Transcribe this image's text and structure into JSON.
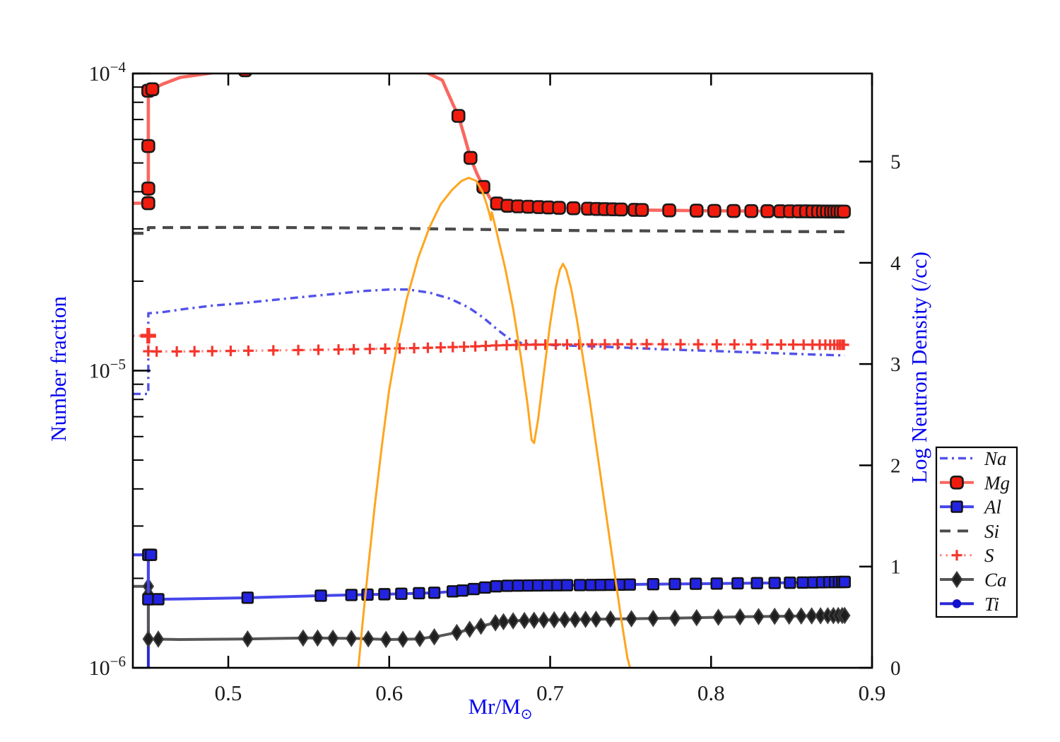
{
  "figure": {
    "background": "#ffffff",
    "frame_color": "#000000",
    "tick_label_color": "#1a1a1a",
    "axis_label_color": "#0505ee"
  },
  "chart_data": {
    "type": "line",
    "title": "",
    "xlabel_main": "Mr/M",
    "xlabel_sub": "⊙",
    "ylabel_left": "Number fraction",
    "ylabel_right": "Log Neutron Density (/cc)",
    "x_range": [
      0.4407,
      0.9
    ],
    "x_ticks": [
      0.5,
      0.6,
      0.7,
      0.8,
      0.9
    ],
    "x_tick_labels": [
      "0.5",
      "0.6",
      "0.7",
      "0.8",
      "0.9"
    ],
    "y_left": {
      "scale": "log",
      "min": 1e-06,
      "max": 0.0001,
      "major_ticks": [
        0.0001,
        1e-05,
        1e-06
      ],
      "tick_labels": [
        {
          "base": "10",
          "exp": "−4"
        },
        {
          "base": "10",
          "exp": "−5"
        },
        {
          "base": "10",
          "exp": "−6"
        }
      ]
    },
    "y_right": {
      "min": 0,
      "max": 5.87,
      "ticks": [
        0,
        1,
        2,
        3,
        4,
        5
      ],
      "tick_labels": [
        "0",
        "1",
        "2",
        "3",
        "4",
        "5"
      ]
    },
    "legend_position": "right-middle",
    "grid": false,
    "series": [
      {
        "name": "Na",
        "color": "#5252ea",
        "dash": "dashdot",
        "marker": "none",
        "width": 3.4,
        "points": [
          [
            0.4407,
            8.35e-06
          ],
          [
            0.4503,
            8.35e-06
          ],
          [
            0.4503,
            1.56e-05
          ],
          [
            0.458,
            1.57e-05
          ],
          [
            0.472,
            1.61e-05
          ],
          [
            0.49,
            1.655e-05
          ],
          [
            0.51,
            1.69e-05
          ],
          [
            0.535,
            1.745e-05
          ],
          [
            0.56,
            1.8e-05
          ],
          [
            0.585,
            1.855e-05
          ],
          [
            0.6,
            1.875e-05
          ],
          [
            0.612,
            1.875e-05
          ],
          [
            0.625,
            1.83e-05
          ],
          [
            0.638,
            1.745e-05
          ],
          [
            0.6495,
            1.63e-05
          ],
          [
            0.659,
            1.5e-05
          ],
          [
            0.6675,
            1.37e-05
          ],
          [
            0.6755,
            1.27e-05
          ],
          [
            0.683,
            1.235e-05
          ],
          [
            0.69,
            1.225e-05
          ],
          [
            0.71,
            1.215e-05
          ],
          [
            0.74,
            1.2e-05
          ],
          [
            0.77,
            1.18e-05
          ],
          [
            0.8,
            1.165e-05
          ],
          [
            0.83,
            1.15e-05
          ],
          [
            0.86,
            1.135e-05
          ],
          [
            0.883,
            1.125e-05
          ]
        ],
        "markers_x": [],
        "extra_markers": []
      },
      {
        "name": "Mg",
        "color": "#f9675f",
        "marker_color": "#f11b0d",
        "edge": "#1a1a1a",
        "dash": "solid",
        "marker": "roundsquare",
        "width": 4.6,
        "points": [
          [
            0.4407,
            3.66e-05
          ],
          [
            0.4503,
            3.66e-05
          ],
          [
            0.4503,
            8.75e-05
          ],
          [
            0.4528,
            8.85e-05
          ],
          [
            0.459,
            9.2e-05
          ],
          [
            0.47,
            9.7e-05
          ],
          [
            0.49,
            0.0001005
          ],
          [
            0.515,
            0.000103
          ],
          [
            0.56,
            0.0001055
          ],
          [
            0.6,
            0.0001045
          ],
          [
            0.622,
            0.0001015
          ],
          [
            0.633,
            9.5e-05
          ],
          [
            0.6395,
            7.9e-05
          ],
          [
            0.643,
            7.2e-05
          ],
          [
            0.6465,
            6.2e-05
          ],
          [
            0.6505,
            5.2e-05
          ],
          [
            0.6545,
            4.6e-05
          ],
          [
            0.6585,
            4.15e-05
          ],
          [
            0.663,
            3.78e-05
          ],
          [
            0.668,
            3.62e-05
          ],
          [
            0.675,
            3.58e-05
          ],
          [
            0.7,
            3.54e-05
          ],
          [
            0.73,
            3.5e-05
          ],
          [
            0.76,
            3.47e-05
          ],
          [
            0.8,
            3.45e-05
          ],
          [
            0.84,
            3.44e-05
          ],
          [
            0.883,
            3.43e-05
          ]
        ],
        "markers_x": [
          0.4528,
          0.5105,
          0.643,
          0.6505,
          0.6585,
          0.667,
          0.6735,
          0.68,
          0.6865,
          0.693,
          0.699,
          0.7055,
          0.7145,
          0.7235,
          0.729,
          0.734,
          0.739,
          0.744,
          0.7525,
          0.757,
          0.774,
          0.791,
          0.802,
          0.814,
          0.825,
          0.835,
          0.843,
          0.849,
          0.8545,
          0.859,
          0.863,
          0.8665,
          0.8695,
          0.872,
          0.8745,
          0.8765,
          0.8785,
          0.8805,
          0.8825
        ],
        "extra_markers": [
          [
            0.4503,
            3.66e-05
          ],
          [
            0.4503,
            4.1e-05
          ],
          [
            0.4503,
            5.7e-05
          ],
          [
            0.4503,
            8.75e-05
          ]
        ]
      },
      {
        "name": "Al",
        "color": "#4646ec",
        "marker_color": "#2323e2",
        "edge": "#111111",
        "dash": "solid",
        "marker": "square",
        "width": 4,
        "points": [
          [
            0.4407,
            2.4e-06
          ],
          [
            0.4503,
            2.4e-06
          ],
          [
            0.4503,
            1.7e-06
          ],
          [
            0.47,
            1.705e-06
          ],
          [
            0.51,
            1.72e-06
          ],
          [
            0.56,
            1.75e-06
          ],
          [
            0.6,
            1.77e-06
          ],
          [
            0.63,
            1.79e-06
          ],
          [
            0.6455,
            1.82e-06
          ],
          [
            0.6555,
            1.85e-06
          ],
          [
            0.6655,
            1.88e-06
          ],
          [
            0.6755,
            1.89e-06
          ],
          [
            0.7,
            1.895e-06
          ],
          [
            0.73,
            1.9e-06
          ],
          [
            0.76,
            1.91e-06
          ],
          [
            0.8,
            1.92e-06
          ],
          [
            0.84,
            1.93e-06
          ],
          [
            0.883,
            1.945e-06
          ]
        ],
        "markers_x": [
          0.4565,
          0.512,
          0.5575,
          0.5765,
          0.5865,
          0.597,
          0.6075,
          0.6185,
          0.628,
          0.6395,
          0.6455,
          0.6525,
          0.6595,
          0.6665,
          0.6735,
          0.68,
          0.6865,
          0.6925,
          0.6985,
          0.7045,
          0.7105,
          0.7185,
          0.7255,
          0.7315,
          0.7375,
          0.7435,
          0.7495,
          0.764,
          0.7775,
          0.7905,
          0.8035,
          0.8165,
          0.8285,
          0.8395,
          0.849,
          0.857,
          0.8635,
          0.869,
          0.8735,
          0.877,
          0.8795,
          0.8815,
          0.883
        ],
        "extra_markers": [
          [
            0.4503,
            2.4e-06
          ],
          [
            0.452,
            2.4e-06
          ],
          [
            0.4503,
            1.7e-06
          ]
        ]
      },
      {
        "name": "Si",
        "color": "#4b4b4b",
        "dash": "dashed",
        "marker": "none",
        "width": 4.2,
        "points": [
          [
            0.4407,
            2.9e-05
          ],
          [
            0.4503,
            2.9e-05
          ],
          [
            0.4503,
            3.03e-05
          ],
          [
            0.5,
            3.035e-05
          ],
          [
            0.55,
            3.03e-05
          ],
          [
            0.6,
            3.015e-05
          ],
          [
            0.64,
            2.995e-05
          ],
          [
            0.68,
            2.975e-05
          ],
          [
            0.72,
            2.96e-05
          ],
          [
            0.78,
            2.95e-05
          ],
          [
            0.83,
            2.94e-05
          ],
          [
            0.883,
            2.935e-05
          ]
        ],
        "markers_x": [],
        "extra_markers": []
      },
      {
        "name": "S",
        "color": "#ff8c85",
        "marker_color": "#f6352b",
        "dash": "dotted",
        "marker": "plus",
        "width": 3.4,
        "points": [
          [
            0.4407,
            1.31e-05
          ],
          [
            0.4503,
            1.31e-05
          ],
          [
            0.4503,
            1.162e-05
          ],
          [
            0.47,
            1.16e-05
          ],
          [
            0.52,
            1.168e-05
          ],
          [
            0.57,
            1.178e-05
          ],
          [
            0.62,
            1.192e-05
          ],
          [
            0.65,
            1.205e-05
          ],
          [
            0.67,
            1.218e-05
          ],
          [
            0.69,
            1.223e-05
          ],
          [
            0.72,
            1.226e-05
          ],
          [
            0.76,
            1.228e-05
          ],
          [
            0.8,
            1.226e-05
          ],
          [
            0.883,
            1.222e-05
          ]
        ],
        "markers_x": [
          0.468,
          0.479,
          0.49,
          0.5015,
          0.5125,
          0.528,
          0.5435,
          0.556,
          0.5685,
          0.578,
          0.588,
          0.5975,
          0.6065,
          0.6155,
          0.624,
          0.632,
          0.6395,
          0.6465,
          0.6535,
          0.66,
          0.6665,
          0.673,
          0.679,
          0.685,
          0.691,
          0.697,
          0.7035,
          0.7105,
          0.718,
          0.726,
          0.734,
          0.742,
          0.7505,
          0.76,
          0.77,
          0.781,
          0.792,
          0.8035,
          0.8145,
          0.825,
          0.835,
          0.8435,
          0.851,
          0.8575,
          0.863,
          0.8675,
          0.871,
          0.874,
          0.8765,
          0.8785,
          0.88,
          0.8815,
          0.8825
        ],
        "extra_markers": [
          [
            0.4503,
            1.162e-05
          ],
          [
            0.4555,
            1.16e-05
          ]
        ],
        "big_markers": [
          [
            0.4503,
            1.31e-05
          ]
        ]
      },
      {
        "name": "Ca",
        "color": "#575757",
        "marker_color": "#1e1e1e",
        "edge": "#3d3d3d",
        "dash": "solid",
        "marker": "diamond",
        "width": 4,
        "points": [
          [
            0.4407,
            1.88e-06
          ],
          [
            0.4503,
            1.88e-06
          ],
          [
            0.4503,
            1.25e-06
          ],
          [
            0.47,
            1.245e-06
          ],
          [
            0.51,
            1.25e-06
          ],
          [
            0.55,
            1.26e-06
          ],
          [
            0.58,
            1.255e-06
          ],
          [
            0.6,
            1.245e-06
          ],
          [
            0.617,
            1.25e-06
          ],
          [
            0.63,
            1.275e-06
          ],
          [
            0.645,
            1.325e-06
          ],
          [
            0.658,
            1.385e-06
          ],
          [
            0.668,
            1.425e-06
          ],
          [
            0.678,
            1.44e-06
          ],
          [
            0.7,
            1.45e-06
          ],
          [
            0.74,
            1.46e-06
          ],
          [
            0.78,
            1.47e-06
          ],
          [
            0.82,
            1.485e-06
          ],
          [
            0.883,
            1.5e-06
          ]
        ],
        "markers_x": [
          0.4565,
          0.512,
          0.5465,
          0.5555,
          0.565,
          0.5765,
          0.587,
          0.598,
          0.6085,
          0.619,
          0.628,
          0.642,
          0.65,
          0.657,
          0.666,
          0.671,
          0.677,
          0.684,
          0.69,
          0.696,
          0.7025,
          0.709,
          0.7155,
          0.722,
          0.7285,
          0.7375,
          0.7505,
          0.764,
          0.7775,
          0.791,
          0.8045,
          0.818,
          0.8295,
          0.8395,
          0.8485,
          0.856,
          0.8625,
          0.868,
          0.8725,
          0.876,
          0.879,
          0.8815,
          0.883
        ],
        "extra_markers": [
          [
            0.4503,
            1.88e-06
          ],
          [
            0.4503,
            1.77e-06
          ],
          [
            0.4503,
            1.25e-06
          ]
        ]
      },
      {
        "name": "Ti",
        "color": "#2b2bd5",
        "marker_color": "#1111cc",
        "edge": "#1111cc",
        "dash": "solid",
        "marker": "circle",
        "width": 4,
        "points": [
          [
            0.4407,
            2.4e-06
          ],
          [
            0.4503,
            2.4e-06
          ],
          [
            0.4503,
            8e-07
          ]
        ],
        "markers_x": [],
        "extra_markers": [
          [
            0.4503,
            2.4e-06
          ]
        ]
      }
    ],
    "neutron_curve": {
      "name": "neutron-density",
      "color": "#ffa51f",
      "axis": "right",
      "width": 3,
      "points": [
        [
          0.5805,
          -0.05
        ],
        [
          0.5835,
          0.45
        ],
        [
          0.587,
          1.0
        ],
        [
          0.591,
          1.6
        ],
        [
          0.5955,
          2.2
        ],
        [
          0.6,
          2.75
        ],
        [
          0.605,
          3.2
        ],
        [
          0.611,
          3.65
        ],
        [
          0.618,
          4.05
        ],
        [
          0.625,
          4.35
        ],
        [
          0.632,
          4.58
        ],
        [
          0.639,
          4.72
        ],
        [
          0.645,
          4.81
        ],
        [
          0.6495,
          4.84
        ],
        [
          0.654,
          4.81
        ],
        [
          0.658,
          4.7
        ],
        [
          0.6605,
          4.58
        ],
        [
          0.662,
          4.5
        ],
        [
          0.6632,
          4.42
        ],
        [
          0.6637,
          4.5
        ],
        [
          0.665,
          4.42
        ],
        [
          0.668,
          4.22
        ],
        [
          0.672,
          3.95
        ],
        [
          0.677,
          3.55
        ],
        [
          0.682,
          3.05
        ],
        [
          0.686,
          2.6
        ],
        [
          0.6885,
          2.25
        ],
        [
          0.69,
          2.22
        ],
        [
          0.6925,
          2.45
        ],
        [
          0.696,
          2.9
        ],
        [
          0.7,
          3.4
        ],
        [
          0.7035,
          3.75
        ],
        [
          0.706,
          3.93
        ],
        [
          0.708,
          3.99
        ],
        [
          0.71,
          3.93
        ],
        [
          0.713,
          3.75
        ],
        [
          0.7165,
          3.45
        ],
        [
          0.72,
          3.1
        ],
        [
          0.7245,
          2.65
        ],
        [
          0.729,
          2.15
        ],
        [
          0.734,
          1.6
        ],
        [
          0.739,
          1.05
        ],
        [
          0.744,
          0.5
        ],
        [
          0.748,
          0.1
        ],
        [
          0.7505,
          -0.05
        ]
      ]
    }
  }
}
